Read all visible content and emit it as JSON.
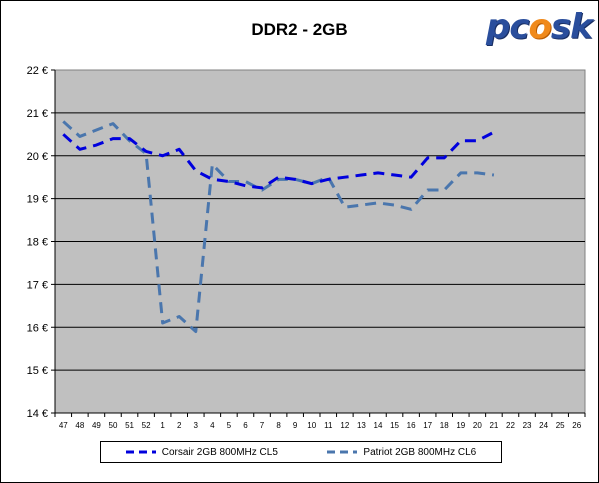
{
  "chart_data": {
    "type": "line",
    "title": "DDR2 - 2GB",
    "xlabel": "",
    "ylabel": "",
    "categories": [
      "47",
      "48",
      "49",
      "50",
      "51",
      "52",
      "1",
      "2",
      "3",
      "4",
      "5",
      "6",
      "7",
      "8",
      "9",
      "10",
      "11",
      "12",
      "13",
      "14",
      "15",
      "16",
      "17",
      "18",
      "19",
      "20",
      "21",
      "22",
      "23",
      "24",
      "25",
      "26"
    ],
    "y_ticks": [
      "14 €",
      "15 €",
      "16 €",
      "17 €",
      "18 €",
      "19 €",
      "20 €",
      "21 €",
      "22 €"
    ],
    "ylim": [
      14,
      22
    ],
    "grid": "horizontal",
    "legend_position": "bottom",
    "plot_background": "#c0c0c0",
    "series": [
      {
        "name": "Corsair 2GB 800MHz CL5",
        "color": "#0000dd",
        "values": [
          20.5,
          20.15,
          20.25,
          20.4,
          20.4,
          20.1,
          20.0,
          20.15,
          19.65,
          19.45,
          19.4,
          19.3,
          19.25,
          19.5,
          19.45,
          19.35,
          19.45,
          19.5,
          19.55,
          19.6,
          19.55,
          19.5,
          19.95,
          19.95,
          20.35,
          20.35,
          20.55,
          null,
          null,
          null,
          null,
          null
        ]
      },
      {
        "name": "Patriot 2GB 800MHz CL6",
        "color": "#4a76ad",
        "values": [
          20.8,
          20.45,
          20.6,
          20.75,
          20.35,
          20.05,
          16.1,
          16.25,
          15.9,
          19.8,
          19.4,
          19.4,
          19.2,
          19.45,
          19.45,
          19.35,
          19.5,
          18.8,
          18.85,
          18.9,
          18.85,
          18.75,
          19.2,
          19.2,
          19.6,
          19.6,
          19.55,
          null,
          null,
          null,
          null,
          null
        ]
      }
    ]
  },
  "logo": {
    "text_left": "pc",
    "text_flame": "o",
    "text_right": "sk"
  }
}
